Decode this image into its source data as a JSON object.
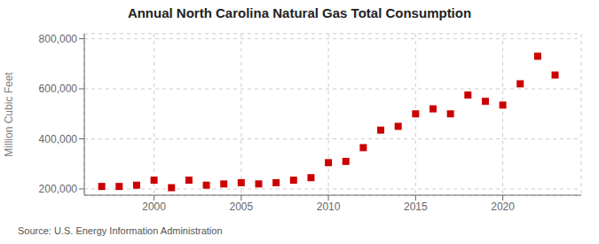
{
  "chart_data": {
    "type": "scatter",
    "title": "Annual North Carolina Natural Gas Total Consumption",
    "ylabel": "Million Cubic Feet",
    "annotation": "Source: U.S. Energy Information Administration",
    "x": [
      1997,
      1998,
      1999,
      2000,
      2001,
      2002,
      2003,
      2004,
      2005,
      2006,
      2007,
      2008,
      2009,
      2010,
      2011,
      2012,
      2013,
      2014,
      2015,
      2016,
      2017,
      2018,
      2019,
      2020,
      2021,
      2022,
      2023
    ],
    "values": [
      210000,
      210000,
      215000,
      235000,
      205000,
      235000,
      215000,
      220000,
      225000,
      220000,
      225000,
      235000,
      245000,
      305000,
      310000,
      365000,
      435000,
      450000,
      500000,
      520000,
      500000,
      575000,
      550000,
      535000,
      620000,
      730000,
      655000
    ],
    "color": "#cc0000",
    "marker": "square",
    "xlim": [
      1996,
      2024.5
    ],
    "ylim": [
      175000,
      820000
    ],
    "xticks": [
      2000,
      2005,
      2010,
      2015,
      2020
    ],
    "yticks": [
      {
        "value": 200000,
        "label": "200,000"
      },
      {
        "value": 400000,
        "label": "400,000"
      },
      {
        "value": 600000,
        "label": "600,000"
      },
      {
        "value": 800000,
        "label": "800,000"
      }
    ],
    "grid": true
  }
}
